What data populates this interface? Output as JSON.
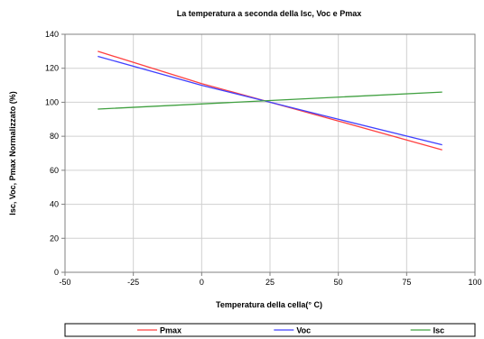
{
  "chart_data": {
    "type": "line",
    "title": "La temperatura a seconda della Isc, Voc e Pmax",
    "xlabel": "Temperatura della cella(° C)",
    "ylabel": "Isc, Voc, Pmax Normalizzato (%)",
    "xlim": [
      -50,
      100
    ],
    "ylim": [
      0,
      140
    ],
    "xticks": [
      "-50",
      "-25",
      "0",
      "25",
      "50",
      "75",
      "100"
    ],
    "yticks": [
      "0",
      "20",
      "40",
      "60",
      "80",
      "100",
      "120",
      "140"
    ],
    "grid": true,
    "legend_position": "bottom",
    "series": [
      {
        "name": "Pmax",
        "color": "#ff4040",
        "x": [
          -38,
          0,
          25,
          50,
          88
        ],
        "y": [
          130,
          111,
          100,
          89,
          72
        ]
      },
      {
        "name": "Voc",
        "color": "#4040ff",
        "x": [
          -38,
          0,
          25,
          50,
          88
        ],
        "y": [
          127,
          110,
          100,
          90,
          75
        ]
      },
      {
        "name": "Isc",
        "color": "#40a040",
        "x": [
          -38,
          25,
          88
        ],
        "y": [
          96,
          101,
          106
        ]
      }
    ]
  }
}
